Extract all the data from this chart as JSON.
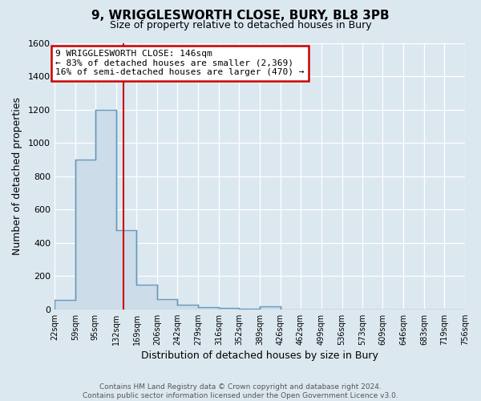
{
  "title_line1": "9, WRIGGLESWORTH CLOSE, BURY, BL8 3PB",
  "title_line2": "Size of property relative to detached houses in Bury",
  "xlabel": "Distribution of detached houses by size in Bury",
  "ylabel": "Number of detached properties",
  "property_size": 146,
  "annotation_line1": "9 WRIGGLESWORTH CLOSE: 146sqm",
  "annotation_line2": "← 83% of detached houses are smaller (2,369)",
  "annotation_line3": "16% of semi-detached houses are larger (470) →",
  "footer_line1": "Contains HM Land Registry data © Crown copyright and database right 2024.",
  "footer_line2": "Contains public sector information licensed under the Open Government Licence v3.0.",
  "bin_edges": [
    22,
    59,
    95,
    132,
    169,
    206,
    242,
    279,
    316,
    352,
    389,
    426,
    462,
    499,
    536,
    573,
    609,
    646,
    683,
    719,
    756
  ],
  "bar_heights": [
    55,
    900,
    1200,
    475,
    150,
    60,
    30,
    15,
    10,
    5,
    20,
    0,
    0,
    0,
    0,
    0,
    0,
    0,
    0,
    0
  ],
  "bar_face_color": "#ccdce8",
  "bar_edge_color": "#6699bb",
  "vline_color": "#cc0000",
  "vline_x": 146,
  "ylim": [
    0,
    1600
  ],
  "yticks": [
    0,
    200,
    400,
    600,
    800,
    1000,
    1200,
    1400,
    1600
  ],
  "background_color": "#dce8f0",
  "grid_color": "#ffffff",
  "annotation_box_color": "#ffffff",
  "annotation_box_edge": "#cc0000",
  "tick_label_size": 8,
  "axis_label_size": 9,
  "title1_size": 11,
  "title2_size": 9,
  "footer_size": 6.5
}
